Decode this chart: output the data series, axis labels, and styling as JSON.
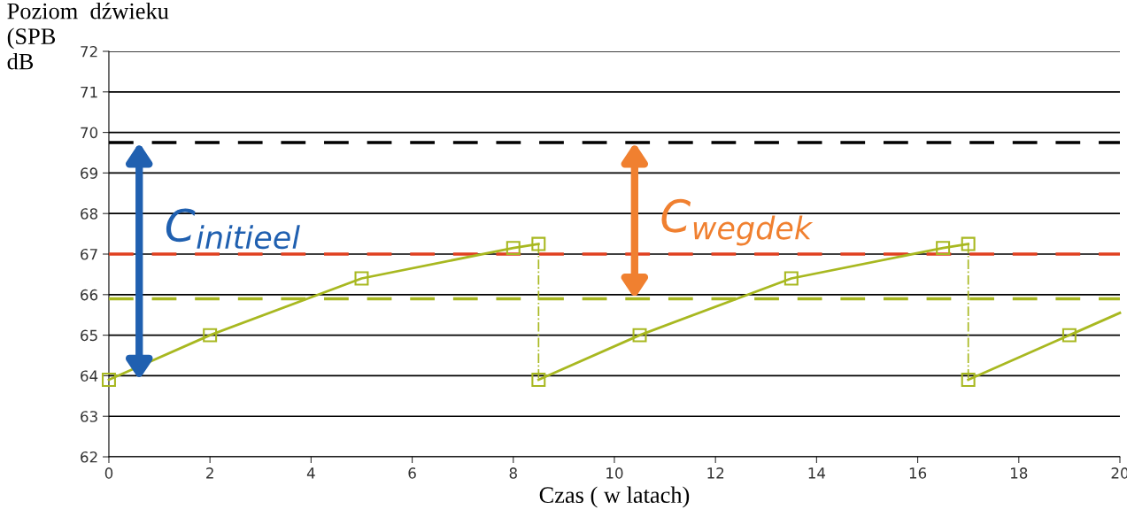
{
  "chart_data": {
    "type": "line",
    "xlabel": "Czas ( w latach)",
    "ylabel": "Poziom  dźwieku\n(SPB\ndB",
    "xlim": [
      0,
      20
    ],
    "xticks": [
      0,
      2,
      4,
      6,
      8,
      10,
      12,
      14,
      16,
      18,
      20
    ],
    "ylim": [
      62,
      72
    ],
    "yticks": [
      62,
      63,
      64,
      65,
      66,
      67,
      68,
      69,
      70,
      71,
      72
    ],
    "grid": "y",
    "series": [
      {
        "color": "#a8b820",
        "marker": "square",
        "line_style": "solid",
        "x": [
          0,
          2,
          5,
          8,
          8.5
        ],
        "values": [
          63.9,
          65.0,
          66.4,
          67.15,
          67.25
        ]
      },
      {
        "color": "#a8b820",
        "line_style": "dotted",
        "x": [
          8.5,
          8.5
        ],
        "values": [
          67.25,
          63.9
        ]
      },
      {
        "color": "#a8b820",
        "marker": "square",
        "line_style": "solid",
        "x": [
          8.5,
          10.5,
          13.5,
          16.5,
          17
        ],
        "values": [
          63.9,
          65.0,
          66.4,
          67.15,
          67.25
        ]
      },
      {
        "color": "#a8b820",
        "line_style": "dotted",
        "x": [
          17,
          17
        ],
        "values": [
          67.25,
          63.9
        ]
      },
      {
        "color": "#a8b820",
        "marker": "square",
        "line_style": "solid",
        "x": [
          17,
          19
        ],
        "values": [
          63.9,
          65.0
        ]
      },
      {
        "color": "#a8b820",
        "line_style": "solid",
        "x": [
          19,
          20
        ],
        "values": [
          65.0,
          65.55
        ]
      }
    ],
    "ref_lines": [
      {
        "axis": "y",
        "value": 69.75,
        "color": "#000000",
        "line_style": "dashed"
      },
      {
        "axis": "y",
        "value": 67,
        "color": "#e04020",
        "line_style": "dashed"
      },
      {
        "axis": "y",
        "value": 65.9,
        "color": "#a8b820",
        "line_style": "dashed"
      }
    ],
    "annotations": [
      "C$_{initieel}$",
      "C$_{wegdek}$"
    ]
  }
}
